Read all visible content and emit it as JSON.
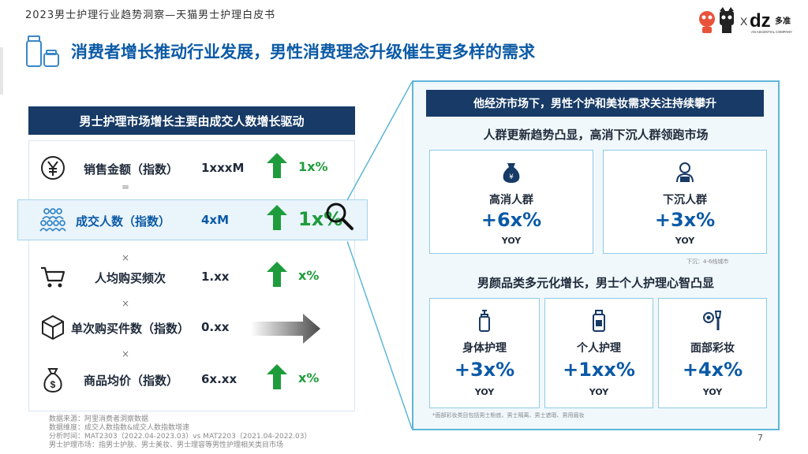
{
  "header": {
    "title": "2023男士护理行业趋势洞察—天猫男士护理白皮书"
  },
  "logos": {
    "partner_x": "X",
    "brand_text": "dz",
    "brand_cn": "多准",
    "brand_tagline": "AN ASCENTIAL COMPANY"
  },
  "headline": "消费者增长推动行业发展，男性消费理念升级催生更多样的需求",
  "left_panel": {
    "title": "男士护理市场增长主要由成交人数增长驱动",
    "rows": [
      {
        "label": "销售金额（指数）",
        "value": "1xxxM",
        "growth": "1x%",
        "icon": "yen-coin-icon",
        "trend": "up"
      },
      {
        "label": "成交人数（指数）",
        "value": "4xM",
        "growth": "1x%",
        "icon": "people-group-icon",
        "trend": "up",
        "highlight": true
      },
      {
        "label": "人均购买频次",
        "value": "1.xx",
        "growth": "x%",
        "icon": "shopping-cart-icon",
        "trend": "up"
      },
      {
        "label": "单次购买件数（指数）",
        "value": "0.xx",
        "growth": "",
        "icon": "package-box-icon",
        "trend": "flat"
      },
      {
        "label": "商品均价（指数）",
        "value": "6x.xx",
        "growth": "x%",
        "icon": "money-bag-icon",
        "trend": "up"
      }
    ],
    "operators": [
      "=",
      "×",
      "×",
      "×"
    ]
  },
  "right_panel": {
    "title": "他经济市场下，男性个护和美妆需求关注持续攀升",
    "section1": {
      "title": "人群更新趋势凸显，高消下沉人群领跑市场",
      "cards": [
        {
          "name": "高消人群",
          "value": "+6x%",
          "yoy": "YOY",
          "icon": "money-bag-yen-icon"
        },
        {
          "name": "下沉人群",
          "value": "+3x%",
          "yoy": "YOY",
          "icon": "person-laptop-icon"
        }
      ],
      "note": "下沉：4-6线城市"
    },
    "section2": {
      "title": "男颜品类多元化增长，男士个人护理心智凸显",
      "cards": [
        {
          "name": "身体护理",
          "value": "+3x%",
          "yoy": "YOY",
          "icon": "pump-bottle-icon"
        },
        {
          "name": "个人护理",
          "value": "+1xx%",
          "yoy": "YOY",
          "icon": "lotion-bottle-icon"
        },
        {
          "name": "面部彩妆",
          "value": "+4x%",
          "yoy": "YOY",
          "icon": "makeup-brush-icon"
        }
      ],
      "note": "*面部彩妆类目包括男士粉底、男士隔离、男士遮瑕、男用眉妆"
    }
  },
  "sources": [
    "数据来源：阿里消费者洞察数据",
    "数据维度：成交人数指数&成交人数指数增速",
    "分析时间：MAT2303（2022.04-2023.03）vs MAT2203（2021.04-2022.03）",
    "男士护理市场：指男士护肤、男士美妆、男士理容等男性护理相关类目市场"
  ],
  "page_number": "7",
  "colors": {
    "navy": "#173a66",
    "blue": "#0b5aa6",
    "green": "#1e9c3c",
    "cyan": "#5fb6d8"
  }
}
